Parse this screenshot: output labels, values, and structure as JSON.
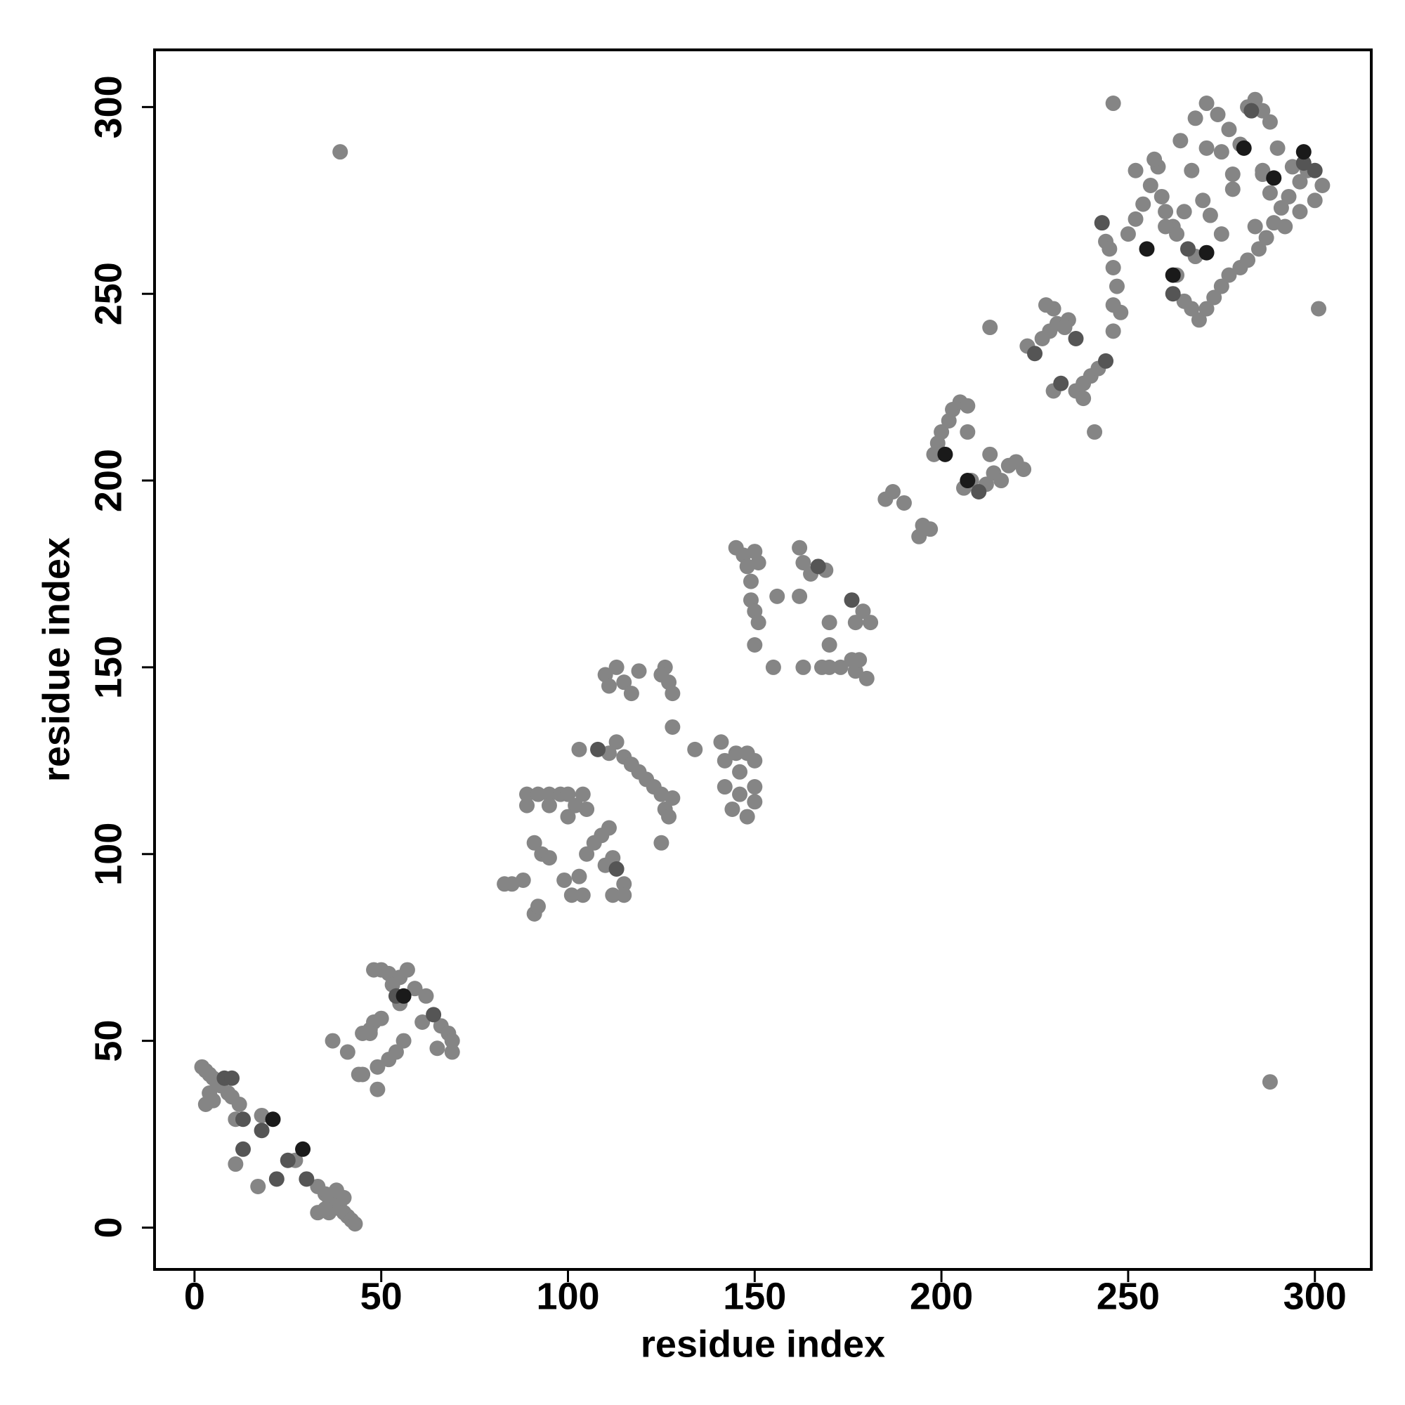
{
  "chart_data": {
    "type": "scatter",
    "xlabel": "residue index",
    "ylabel": "residue index",
    "xlim": [
      -10.7,
      315.1
    ],
    "ylim": [
      -11.2,
      315.3
    ],
    "xticks": [
      0,
      50,
      100,
      150,
      200,
      250,
      300
    ],
    "yticks": [
      0,
      50,
      100,
      150,
      200,
      250,
      300
    ],
    "series": [
      {
        "color": "#858585",
        "x": [
          2,
          3,
          4,
          5,
          6,
          7,
          9,
          10,
          4,
          5,
          3,
          12,
          11,
          18,
          17,
          11,
          27,
          33,
          35,
          36,
          37,
          38,
          39,
          40,
          41,
          42,
          43,
          33,
          36,
          40,
          38,
          35,
          37,
          41,
          44,
          45,
          45,
          47,
          48,
          50,
          49,
          52,
          54,
          56,
          50,
          52,
          55,
          57,
          59,
          62,
          66,
          68,
          69,
          69,
          65,
          61,
          55,
          53,
          48,
          47,
          49,
          83,
          85,
          88,
          91,
          92,
          91,
          93,
          95,
          89,
          89,
          92,
          95,
          95,
          98,
          100,
          102,
          104,
          100,
          105,
          103,
          99,
          101,
          104,
          105,
          107,
          109,
          111,
          110,
          112,
          115,
          115,
          112,
          110,
          111,
          113,
          115,
          117,
          119,
          126,
          127,
          128,
          125,
          111,
          113,
          115,
          117,
          119,
          121,
          123,
          125,
          126,
          127,
          128,
          125,
          128,
          134,
          141,
          142,
          145,
          148,
          150,
          144,
          146,
          148,
          150,
          150,
          142,
          146,
          103,
          145,
          147,
          148,
          150,
          151,
          149,
          149,
          150,
          151,
          150,
          155,
          156,
          162,
          163,
          165,
          169,
          162,
          163,
          168,
          170,
          173,
          170,
          170,
          176,
          177,
          178,
          180,
          179,
          181,
          177,
          185,
          187,
          190,
          194,
          195,
          197,
          198,
          199,
          200,
          202,
          203,
          205,
          207,
          207,
          206,
          208,
          212,
          214,
          216,
          218,
          220,
          222,
          213,
          213,
          241,
          223,
          227,
          229,
          231,
          234,
          228,
          230,
          233,
          236,
          238,
          240,
          242,
          238,
          230,
          246,
          244,
          245,
          246,
          247,
          246,
          248,
          250,
          252,
          254,
          256,
          258,
          259,
          260,
          262,
          263,
          263,
          265,
          267,
          269,
          271,
          273,
          275,
          277,
          280,
          282,
          285,
          287,
          289,
          291,
          293,
          296,
          298,
          302,
          300,
          296,
          292,
          288,
          286,
          280,
          277,
          274,
          271,
          268,
          264,
          271,
          275,
          278,
          272,
          270,
          275,
          278,
          282,
          284,
          286,
          288,
          290,
          294,
          246,
          301,
          288,
          39,
          268,
          260,
          286,
          265,
          267,
          284,
          252,
          257
        ],
        "y": [
          43,
          42,
          41,
          40,
          39,
          38,
          36,
          35,
          36,
          34,
          33,
          33,
          29,
          30,
          11,
          17,
          18,
          11,
          9,
          8,
          7,
          6,
          5,
          4,
          3,
          2,
          1,
          4,
          4,
          8,
          10,
          5,
          50,
          47,
          41,
          41,
          52,
          53,
          55,
          56,
          37,
          45,
          47,
          50,
          69,
          68,
          67,
          69,
          64,
          62,
          54,
          52,
          50,
          47,
          48,
          55,
          60,
          65,
          69,
          52,
          43,
          92,
          92,
          93,
          84,
          86,
          103,
          100,
          99,
          116,
          113,
          116,
          116,
          113,
          116,
          116,
          113,
          116,
          110,
          112,
          94,
          93,
          89,
          89,
          100,
          103,
          105,
          107,
          97,
          99,
          92,
          89,
          89,
          148,
          145,
          150,
          146,
          143,
          149,
          150,
          146,
          143,
          148,
          127,
          130,
          126,
          124,
          122,
          120,
          118,
          116,
          112,
          110,
          115,
          103,
          134,
          128,
          130,
          125,
          127,
          127,
          125,
          112,
          116,
          110,
          114,
          118,
          118,
          122,
          128,
          182,
          180,
          177,
          181,
          178,
          173,
          168,
          165,
          162,
          156,
          150,
          169,
          182,
          178,
          175,
          176,
          169,
          150,
          150,
          150,
          150,
          162,
          156,
          152,
          149,
          152,
          147,
          165,
          162,
          162,
          195,
          197,
          194,
          185,
          188,
          187,
          207,
          210,
          213,
          216,
          219,
          221,
          220,
          213,
          198,
          200,
          199,
          202,
          200,
          204,
          205,
          203,
          207,
          241,
          213,
          236,
          238,
          240,
          242,
          243,
          247,
          246,
          241,
          224,
          226,
          228,
          230,
          222,
          224,
          240,
          264,
          262,
          257,
          252,
          247,
          245,
          266,
          270,
          274,
          279,
          284,
          276,
          272,
          268,
          266,
          255,
          248,
          246,
          243,
          246,
          249,
          252,
          255,
          257,
          259,
          262,
          265,
          269,
          273,
          276,
          280,
          283,
          279,
          275,
          272,
          268,
          277,
          282,
          290,
          294,
          298,
          301,
          297,
          291,
          289,
          288,
          278,
          271,
          275,
          266,
          282,
          300,
          302,
          299,
          296,
          289,
          284,
          301,
          246,
          39,
          288,
          260,
          268,
          283,
          272,
          283,
          268,
          283,
          286
        ]
      },
      {
        "color": "#555555",
        "x": [
          8,
          10,
          13,
          18,
          13,
          22,
          25,
          30,
          54,
          64,
          243,
          266,
          283,
          300,
          262,
          232,
          244,
          236,
          210,
          225,
          176,
          167,
          113,
          108,
          297
        ],
        "y": [
          40,
          40,
          29,
          26,
          21,
          13,
          18,
          13,
          62,
          57,
          269,
          262,
          299,
          283,
          250,
          226,
          232,
          238,
          197,
          234,
          168,
          177,
          96,
          128,
          285
        ]
      },
      {
        "color": "#1a1a1a",
        "x": [
          21,
          29,
          56,
          201,
          207,
          255,
          262,
          281,
          289,
          271,
          297
        ],
        "y": [
          29,
          21,
          62,
          207,
          200,
          262,
          255,
          289,
          281,
          261,
          288
        ]
      }
    ]
  }
}
